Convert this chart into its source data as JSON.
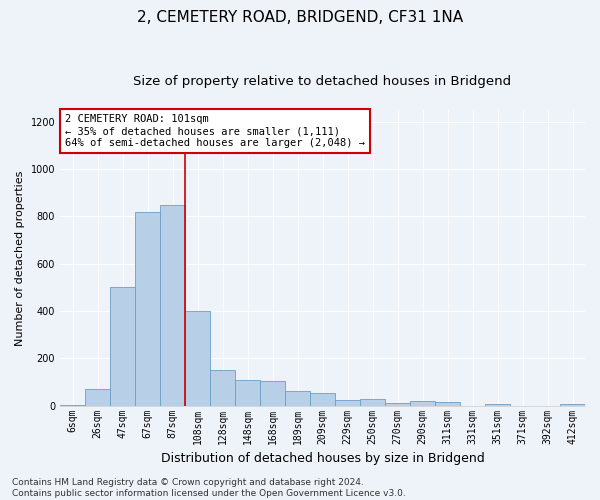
{
  "title": "2, CEMETERY ROAD, BRIDGEND, CF31 1NA",
  "subtitle": "Size of property relative to detached houses in Bridgend",
  "xlabel": "Distribution of detached houses by size in Bridgend",
  "ylabel": "Number of detached properties",
  "footer_line1": "Contains HM Land Registry data © Crown copyright and database right 2024.",
  "footer_line2": "Contains public sector information licensed under the Open Government Licence v3.0.",
  "annotation_title": "2 CEMETERY ROAD: 101sqm",
  "annotation_line2": "← 35% of detached houses are smaller (1,111)",
  "annotation_line3": "64% of semi-detached houses are larger (2,048) →",
  "bar_categories": [
    "6sqm",
    "26sqm",
    "47sqm",
    "67sqm",
    "87sqm",
    "108sqm",
    "128sqm",
    "148sqm",
    "168sqm",
    "189sqm",
    "209sqm",
    "229sqm",
    "250sqm",
    "270sqm",
    "290sqm",
    "311sqm",
    "331sqm",
    "351sqm",
    "371sqm",
    "392sqm",
    "412sqm"
  ],
  "bar_values": [
    2,
    70,
    500,
    820,
    850,
    400,
    150,
    110,
    105,
    60,
    55,
    25,
    30,
    10,
    20,
    15,
    0,
    5,
    0,
    0,
    5
  ],
  "bar_color": "#b8cfe8",
  "bar_edge_color": "#6a9fc8",
  "vline_color": "#cc0000",
  "vline_x": 4.5,
  "annotation_box_color": "#cc0000",
  "annotation_fill": "#ffffff",
  "background_color": "#eef2f9",
  "ylim": [
    0,
    1250
  ],
  "yticks": [
    0,
    200,
    400,
    600,
    800,
    1000,
    1200
  ],
  "title_fontsize": 11,
  "subtitle_fontsize": 9.5,
  "xlabel_fontsize": 9,
  "ylabel_fontsize": 8,
  "tick_fontsize": 7,
  "annotation_fontsize": 7.5,
  "footer_fontsize": 6.5
}
